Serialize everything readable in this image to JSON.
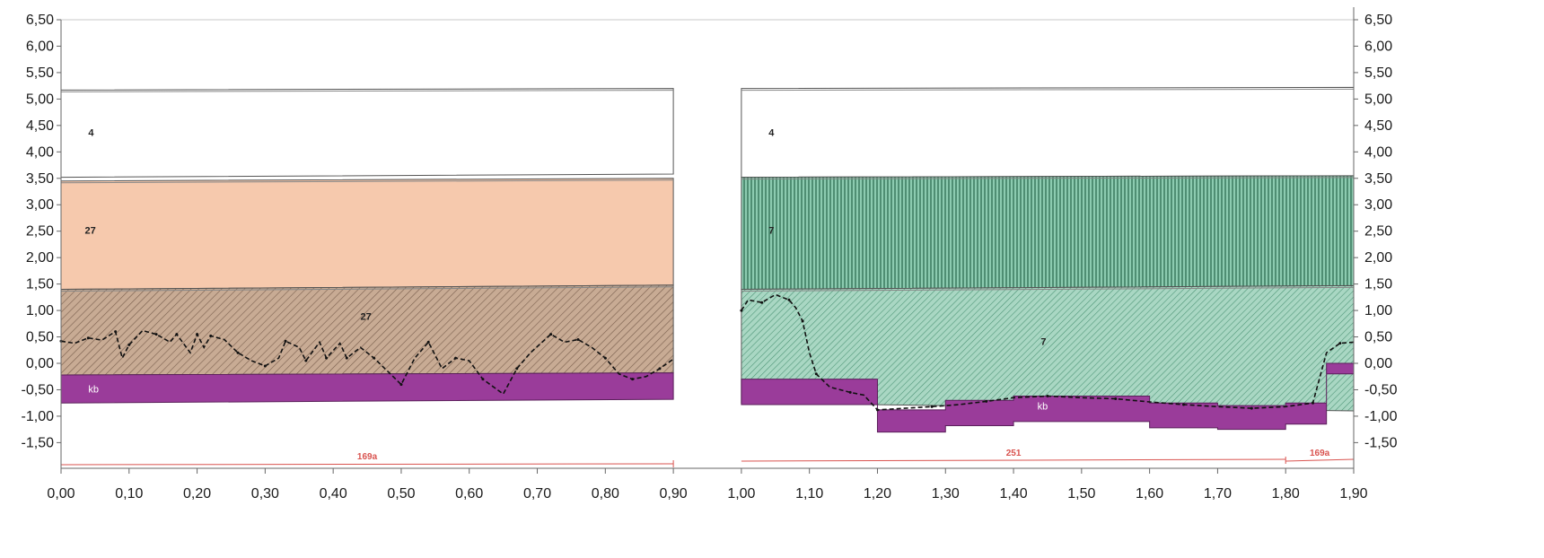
{
  "chart_data": {
    "type": "area",
    "title": "",
    "xlabel": "",
    "ylabel": "",
    "xlim": [
      0.0,
      1.9
    ],
    "ylim": [
      -1.95,
      6.5
    ],
    "x_ticks": [
      "0,00",
      "0,10",
      "0,20",
      "0,30",
      "0,40",
      "0,50",
      "0,60",
      "0,70",
      "0,80",
      "0,90",
      "1,00",
      "1,10",
      "1,20",
      "1,30",
      "1,40",
      "1,50",
      "1,60",
      "1,70",
      "1,80",
      "1,90"
    ],
    "y_ticks": [
      "6,50",
      "6,00",
      "5,50",
      "5,00",
      "4,50",
      "4,00",
      "3,50",
      "3,00",
      "2,50",
      "2,00",
      "1,50",
      "1,00",
      "0,50",
      "0,00",
      "-0,50",
      "-1,00",
      "-1,50"
    ],
    "colors": {
      "peach": "#f6c9ad",
      "brown": "#c4a790",
      "green_dark": "#5aa586",
      "green_light": "#9fd0ba",
      "purple": "#9a3c9a",
      "section_line": "#d9534f"
    },
    "panels": [
      {
        "x_range": [
          0.0,
          0.9
        ],
        "layers": [
          {
            "label": "4",
            "fill": "white",
            "top": [
              5.17,
              5.2
            ],
            "bottom": [
              3.52,
              3.58
            ],
            "label_at": [
              0.04,
              4.3
            ]
          },
          {
            "label": "27",
            "fill": "peach",
            "top": [
              3.45,
              3.5
            ],
            "bottom": [
              1.4,
              1.48
            ],
            "label_at": [
              0.035,
              2.45
            ]
          },
          {
            "label": "27",
            "fill": "brown",
            "top": [
              1.4,
              1.48
            ],
            "bottom": [
              -0.22,
              -0.18
            ],
            "label_at": [
              0.44,
              0.82
            ]
          }
        ],
        "kb": {
          "label": "kb",
          "top": [
            -0.22,
            -0.18
          ],
          "bottom": [
            -0.75,
            -0.68
          ],
          "label_at": [
            0.04,
            -0.55
          ]
        },
        "profile": [
          [
            0.0,
            0.42
          ],
          [
            0.02,
            0.38
          ],
          [
            0.04,
            0.48
          ],
          [
            0.06,
            0.44
          ],
          [
            0.08,
            0.6
          ],
          [
            0.09,
            0.1
          ],
          [
            0.1,
            0.35
          ],
          [
            0.12,
            0.62
          ],
          [
            0.14,
            0.55
          ],
          [
            0.16,
            0.4
          ],
          [
            0.17,
            0.55
          ],
          [
            0.19,
            0.2
          ],
          [
            0.2,
            0.55
          ],
          [
            0.21,
            0.3
          ],
          [
            0.22,
            0.52
          ],
          [
            0.24,
            0.45
          ],
          [
            0.26,
            0.2
          ],
          [
            0.28,
            0.05
          ],
          [
            0.3,
            -0.05
          ],
          [
            0.32,
            0.1
          ],
          [
            0.33,
            0.42
          ],
          [
            0.35,
            0.3
          ],
          [
            0.36,
            0.05
          ],
          [
            0.38,
            0.4
          ],
          [
            0.39,
            0.1
          ],
          [
            0.41,
            0.38
          ],
          [
            0.42,
            0.1
          ],
          [
            0.44,
            0.3
          ],
          [
            0.46,
            0.1
          ],
          [
            0.48,
            -0.15
          ],
          [
            0.5,
            -0.4
          ],
          [
            0.52,
            0.1
          ],
          [
            0.54,
            0.4
          ],
          [
            0.56,
            -0.1
          ],
          [
            0.58,
            0.1
          ],
          [
            0.6,
            0.05
          ],
          [
            0.62,
            -0.3
          ],
          [
            0.65,
            -0.58
          ],
          [
            0.67,
            -0.1
          ],
          [
            0.69,
            0.2
          ],
          [
            0.72,
            0.55
          ],
          [
            0.74,
            0.4
          ],
          [
            0.76,
            0.45
          ],
          [
            0.78,
            0.3
          ],
          [
            0.8,
            0.1
          ],
          [
            0.82,
            -0.2
          ],
          [
            0.84,
            -0.3
          ],
          [
            0.86,
            -0.25
          ],
          [
            0.88,
            -0.1
          ],
          [
            0.9,
            0.08
          ]
        ],
        "section": {
          "label": "169a",
          "from": 0.0,
          "to": 0.9
        }
      },
      {
        "x_range": [
          1.0,
          1.9
        ],
        "layers": [
          {
            "label": "4",
            "fill": "white",
            "top": [
              5.2,
              5.22
            ],
            "bottom": [
              3.52,
              3.55
            ],
            "label_at": [
              1.04,
              4.3
            ]
          },
          {
            "label": "7",
            "fill": "green_dark",
            "top": [
              3.52,
              3.55
            ],
            "bottom": [
              1.4,
              1.47
            ],
            "label_at": [
              1.04,
              2.45
            ]
          },
          {
            "label": "7",
            "fill": "green_light",
            "top": [
              1.4,
              1.47
            ],
            "bottom": [
              -0.75,
              -0.9
            ],
            "label_at": [
              1.44,
              0.35
            ]
          }
        ],
        "kb": {
          "label": "kb",
          "label_at": [
            1.435,
            -0.87
          ],
          "top_steps": [
            [
              1.0,
              -0.3
            ],
            [
              1.2,
              -0.3
            ],
            [
              1.2,
              -0.88
            ],
            [
              1.3,
              -0.88
            ],
            [
              1.3,
              -0.7
            ],
            [
              1.4,
              -0.7
            ],
            [
              1.4,
              -0.62
            ],
            [
              1.6,
              -0.62
            ],
            [
              1.6,
              -0.75
            ],
            [
              1.7,
              -0.75
            ],
            [
              1.7,
              -0.8
            ],
            [
              1.8,
              -0.8
            ],
            [
              1.8,
              -0.75
            ],
            [
              1.86,
              -0.75
            ],
            [
              1.86,
              0.0
            ],
            [
              1.9,
              0.0
            ]
          ],
          "bottom_steps": [
            [
              1.0,
              -0.78
            ],
            [
              1.2,
              -0.78
            ],
            [
              1.2,
              -1.3
            ],
            [
              1.3,
              -1.3
            ],
            [
              1.3,
              -1.18
            ],
            [
              1.4,
              -1.18
            ],
            [
              1.4,
              -1.1
            ],
            [
              1.6,
              -1.1
            ],
            [
              1.6,
              -1.22
            ],
            [
              1.7,
              -1.22
            ],
            [
              1.7,
              -1.25
            ],
            [
              1.8,
              -1.25
            ],
            [
              1.8,
              -1.15
            ],
            [
              1.86,
              -1.15
            ],
            [
              1.86,
              -0.2
            ],
            [
              1.9,
              -0.2
            ]
          ]
        },
        "profile": [
          [
            1.0,
            1.0
          ],
          [
            1.01,
            1.2
          ],
          [
            1.03,
            1.15
          ],
          [
            1.05,
            1.3
          ],
          [
            1.07,
            1.2
          ],
          [
            1.08,
            1.05
          ],
          [
            1.09,
            0.8
          ],
          [
            1.1,
            0.2
          ],
          [
            1.11,
            -0.2
          ],
          [
            1.13,
            -0.45
          ],
          [
            1.16,
            -0.55
          ],
          [
            1.18,
            -0.6
          ],
          [
            1.2,
            -0.88
          ],
          [
            1.24,
            -0.85
          ],
          [
            1.28,
            -0.82
          ],
          [
            1.32,
            -0.78
          ],
          [
            1.36,
            -0.72
          ],
          [
            1.4,
            -0.65
          ],
          [
            1.45,
            -0.62
          ],
          [
            1.5,
            -0.65
          ],
          [
            1.55,
            -0.67
          ],
          [
            1.6,
            -0.73
          ],
          [
            1.65,
            -0.78
          ],
          [
            1.7,
            -0.82
          ],
          [
            1.75,
            -0.85
          ],
          [
            1.8,
            -0.82
          ],
          [
            1.84,
            -0.75
          ],
          [
            1.86,
            0.2
          ],
          [
            1.88,
            0.38
          ],
          [
            1.9,
            0.4
          ]
        ],
        "sections": [
          {
            "label": "251",
            "from": 1.0,
            "to": 1.8
          },
          {
            "label": "169a",
            "from": 1.8,
            "to": 1.9
          }
        ]
      }
    ]
  }
}
